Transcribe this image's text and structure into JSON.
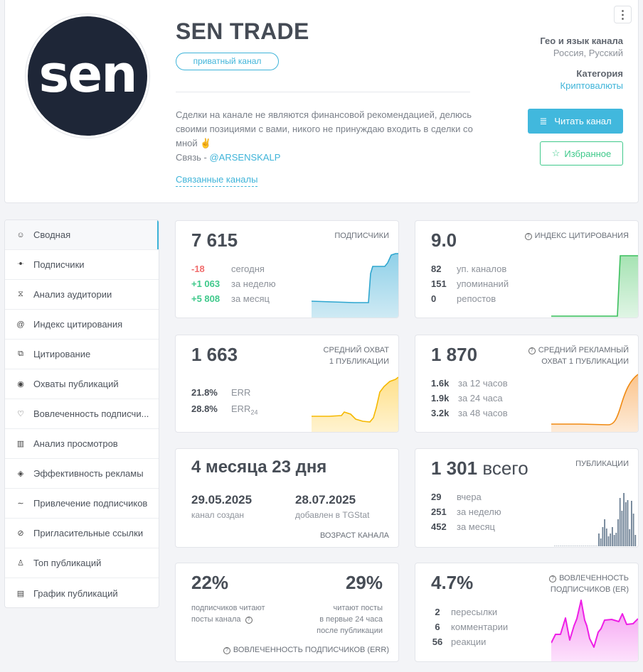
{
  "channel": {
    "avatar_text": "sen",
    "title": "SEN TRADE",
    "badge": "приватный канал",
    "description_line1": "Сделки на канале не являются финансовой рекомендацией, делюсь своими позициями с вами, никого не принуждаю входить в сделки со мной ✌",
    "contact_prefix": "Связь - ",
    "contact_handle": "@ARSENSKALP",
    "related_link": "Связанные каналы",
    "menu_icon": "⋮",
    "geo_label": "Гео и язык канала",
    "geo_value": "Россия, Русский",
    "category_label": "Категория",
    "category_value": "Криптовалюты",
    "read_button": "Читать канал",
    "read_icon": "≣",
    "favorite_button": "Избранное",
    "favorite_icon": "☆"
  },
  "sidebar": {
    "items": [
      {
        "label": "Сводная",
        "icon": "☺",
        "icon_name": "dashboard-icon",
        "active": true
      },
      {
        "label": "Подписчики",
        "icon": "ꔹ",
        "icon_name": "users-icon"
      },
      {
        "label": "Анализ аудитории",
        "icon": "⧖",
        "icon_name": "hourglass-icon"
      },
      {
        "label": "Индекс цитирования",
        "icon": "@",
        "icon_name": "at-icon"
      },
      {
        "label": "Цитирование",
        "icon": "⧉",
        "icon_name": "quote-icon"
      },
      {
        "label": "Охваты публикаций",
        "icon": "◉",
        "icon_name": "eye-icon"
      },
      {
        "label": "Вовлеченность подписчи...",
        "icon": "♡",
        "icon_name": "engagement-icon"
      },
      {
        "label": "Анализ просмотров",
        "icon": "▥",
        "icon_name": "bar-chart-icon"
      },
      {
        "label": "Эффективность рекламы",
        "icon": "◈",
        "icon_name": "rocket-icon"
      },
      {
        "label": "Привлечение подписчиков",
        "icon": "∼",
        "icon_name": "trend-icon"
      },
      {
        "label": "Пригласительные ссылки",
        "icon": "⊘",
        "icon_name": "link-icon"
      },
      {
        "label": "Топ публикаций",
        "icon": "♙",
        "icon_name": "thumbs-up-icon"
      },
      {
        "label": "График публикаций",
        "icon": "▤",
        "icon_name": "calendar-icon"
      }
    ]
  },
  "cards": {
    "subscribers": {
      "value": "7 615",
      "caption": "ПОДПИСЧИКИ",
      "rows": [
        {
          "num": "-18",
          "text": "сегодня"
        },
        {
          "num": "+1 063",
          "text": "за неделю"
        },
        {
          "num": "+5 808",
          "text": "за месяц"
        }
      ]
    },
    "citation": {
      "value": "9.0",
      "caption": "ИНДЕКС ЦИТИРОВАНИЯ",
      "rows": [
        {
          "num": "82",
          "text": "уп. каналов"
        },
        {
          "num": "151",
          "text": "упоминаний"
        },
        {
          "num": "0",
          "text": "репостов"
        }
      ]
    },
    "reach": {
      "value": "1 663",
      "caption_1": "СРЕДНИЙ ОХВАТ",
      "caption_2": "1 ПУБЛИКАЦИИ",
      "rows": [
        {
          "num": "21.8%",
          "text": "ERR"
        },
        {
          "num": "28.8%",
          "text": "ERR",
          "sub": "24"
        }
      ]
    },
    "ad_reach": {
      "value": "1 870",
      "caption_1": "СРЕДНИЙ РЕКЛАМНЫЙ",
      "caption_2": "ОХВАТ 1 ПУБЛИКАЦИИ",
      "rows": [
        {
          "num": "1.6k",
          "text": "за 12 часов"
        },
        {
          "num": "1.9k",
          "text": "за 24 часа"
        },
        {
          "num": "3.2k",
          "text": "за 48 часов"
        }
      ]
    },
    "age": {
      "value": "4 месяца 23 дня",
      "created_date": "29.05.2025",
      "created_label": "канал создан",
      "added_date": "28.07.2025",
      "added_label": "добавлен в TGStat",
      "caption": "ВОЗРАСТ КАНАЛА"
    },
    "posts": {
      "value": "1 301",
      "value_suffix": "всего",
      "caption": "ПУБЛИКАЦИИ",
      "rows": [
        {
          "num": "29",
          "text": "вчера"
        },
        {
          "num": "251",
          "text": "за неделю"
        },
        {
          "num": "452",
          "text": "за месяц"
        }
      ]
    },
    "err": {
      "left_value": "22%",
      "left_text_1": "подписчиков читают",
      "left_text_2": "посты канала",
      "right_value": "29%",
      "right_text_1": "читают посты",
      "right_text_2": "в первые 24 часа",
      "right_text_3": "после публикации",
      "caption": "ВОВЛЕЧЕННОСТЬ ПОДПИСЧИКОВ (ERR)"
    },
    "er": {
      "value": "4.7%",
      "caption_1": "ВОВЛЕЧЕННОСТЬ",
      "caption_2": "ПОДПИСЧИКОВ (ER)",
      "rows": [
        {
          "num": "2",
          "text": "пересылки"
        },
        {
          "num": "6",
          "text": "комментарии"
        },
        {
          "num": "56",
          "text": "реакции"
        }
      ]
    }
  },
  "colors": {
    "accent": "#3fb4d9",
    "green": "#3fc98b",
    "red": "#f16d6d",
    "subs_line": "#2ea6cf",
    "citation_line": "#3cbf5e",
    "reach_line": "#f5b800",
    "ad_line": "#f08a12",
    "posts_bar": "#6e8195",
    "er_line": "#ee1ee6"
  }
}
